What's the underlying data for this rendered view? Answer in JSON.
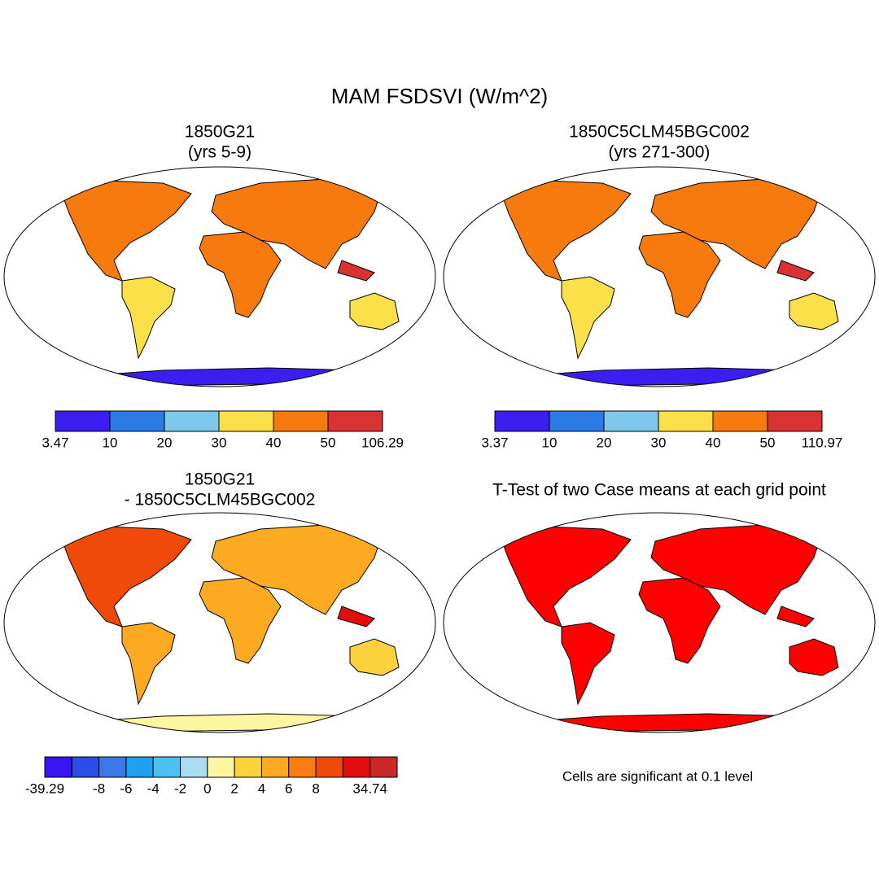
{
  "title": "MAM FSDSVI (W/m^2)",
  "panels": [
    {
      "title_lines": [
        "1850G21",
        "(yrs 5-9)"
      ],
      "colorbar": {
        "colors": [
          "#3c1ef0",
          "#2b7be6",
          "#7ec8ec",
          "#fbe04a",
          "#f77a0f",
          "#d93232"
        ],
        "labels": [
          3.47,
          10,
          20,
          30,
          40,
          50,
          106.29
        ]
      }
    },
    {
      "title_lines": [
        "1850C5CLM45BGC002",
        "(yrs 271-300)"
      ],
      "colorbar": {
        "colors": [
          "#3c1ef0",
          "#2b7be6",
          "#7ec8ec",
          "#fbe04a",
          "#f77a0f",
          "#d93232"
        ],
        "labels": [
          3.37,
          10,
          20,
          30,
          40,
          50,
          110.97
        ]
      }
    },
    {
      "title_lines": [
        "1850G21",
        "- 1850C5CLM45BGC002"
      ],
      "colorbar": {
        "colors": [
          "#3a14f5",
          "#2a4ee6",
          "#3a78e6",
          "#1ea0f0",
          "#4dbff0",
          "#a8dcf0",
          "#fdf6a0",
          "#fcd23c",
          "#fbaa22",
          "#f97d12",
          "#f04a0a",
          "#e30d0d",
          "#c82828"
        ],
        "labels": [
          -39.29,
          null,
          -8,
          -6,
          -4,
          -2,
          0,
          2,
          4,
          6,
          8,
          null,
          34.74
        ]
      }
    },
    {
      "title_lines": [
        "T-Test of two Case means at each grid point"
      ],
      "significant_color": "#ff0000",
      "note": "Cells are significant at 0.1 level"
    }
  ]
}
